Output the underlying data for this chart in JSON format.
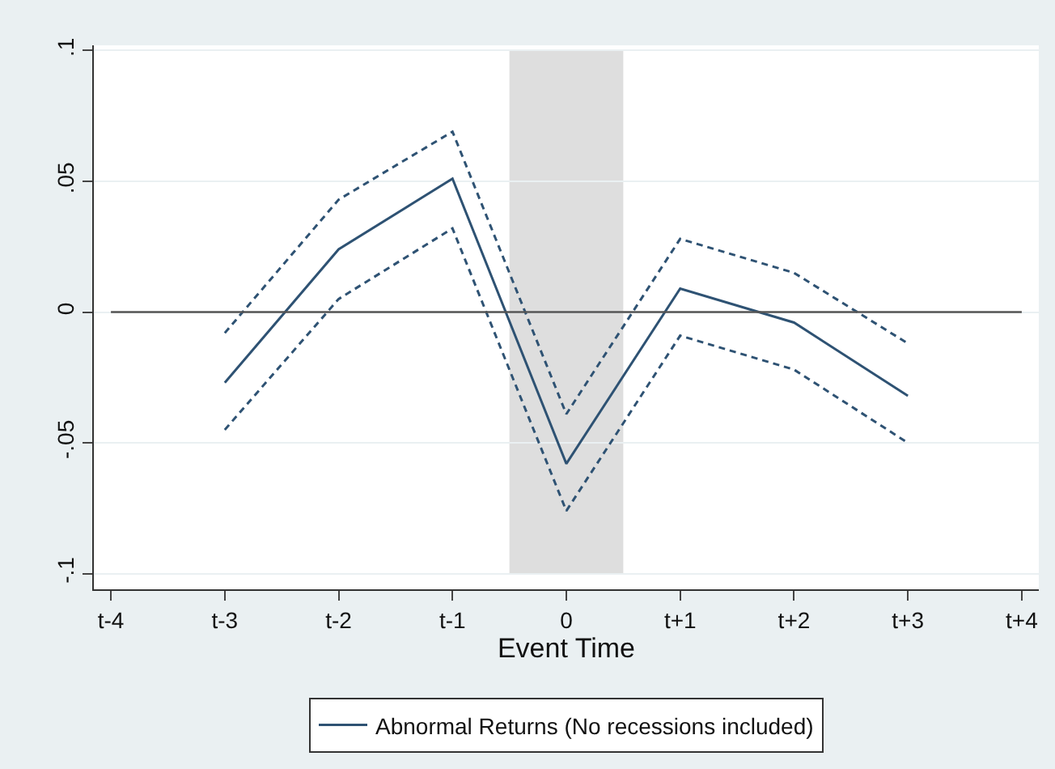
{
  "chart_data": {
    "type": "line",
    "xlabel": "Event Time",
    "categories": [
      "t-4",
      "t-3",
      "t-2",
      "t-1",
      "0",
      "t+1",
      "t+2",
      "t+3",
      "t+4"
    ],
    "series": [
      {
        "name": "Abnormal Returns (No recessions included)",
        "color": "#2e5273",
        "values": [
          null,
          -0.027,
          0.024,
          0.051,
          -0.058,
          0.009,
          -0.004,
          -0.032,
          null
        ]
      },
      {
        "color": "#2e5273",
        "line_style": "dashed",
        "values": [
          null,
          -0.008,
          0.043,
          0.069,
          -0.039,
          0.028,
          0.015,
          -0.012,
          null
        ]
      },
      {
        "color": "#2e5273",
        "line_style": "dashed",
        "values": [
          null,
          -0.045,
          0.005,
          0.032,
          -0.076,
          -0.009,
          -0.022,
          -0.05,
          null
        ]
      }
    ],
    "ylim": [
      -0.106,
      0.102
    ],
    "yticks": [
      {
        "value": -0.1,
        "label": "-.1"
      },
      {
        "value": -0.05,
        "label": "-.05"
      },
      0,
      {
        "value": 0.05,
        "label": ".05"
      },
      {
        "value": 0.1,
        "label": ".1"
      }
    ],
    "ref_lines": [
      {
        "axis": "y",
        "value": 0,
        "color": "#555555"
      }
    ],
    "bands": [
      {
        "axis": "x",
        "from": "0",
        "to": "0",
        "color": "#dedede"
      }
    ],
    "grid": "y",
    "legend": "bottom",
    "line_style": "solid"
  }
}
